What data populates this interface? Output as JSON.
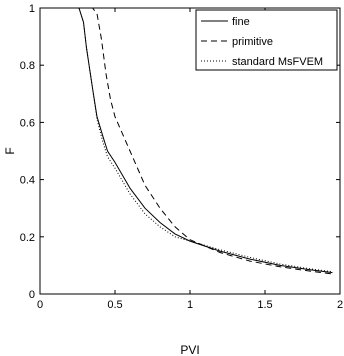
{
  "chart_data": {
    "type": "line",
    "title": "",
    "xlabel": "PVI",
    "ylabel": "F",
    "xlim": [
      0,
      2
    ],
    "ylim": [
      0,
      1
    ],
    "xticks": [
      0,
      0.5,
      1,
      1.5,
      2
    ],
    "xtick_labels": [
      "0",
      "0.5",
      "1",
      "1.5",
      "2"
    ],
    "yticks": [
      0,
      0.2,
      0.4,
      0.6,
      0.8,
      1
    ],
    "ytick_labels": [
      "0",
      "0.2",
      "0.4",
      "0.6",
      "0.8",
      "1"
    ],
    "grid": false,
    "legend_position": "top-right",
    "series": [
      {
        "name": "fine",
        "style": "solid",
        "color": "#000000",
        "x": [
          0.0,
          0.26,
          0.29,
          0.31,
          0.35,
          0.38,
          0.42,
          0.45,
          0.5,
          0.6,
          0.7,
          0.8,
          0.9,
          1.0,
          1.2,
          1.4,
          1.6,
          1.8,
          1.95
        ],
        "y": [
          1.0,
          1.0,
          0.95,
          0.86,
          0.72,
          0.62,
          0.55,
          0.5,
          0.46,
          0.37,
          0.3,
          0.25,
          0.21,
          0.185,
          0.15,
          0.122,
          0.1,
          0.085,
          0.075
        ]
      },
      {
        "name": "primitive",
        "style": "dashed",
        "color": "#000000",
        "x": [
          0.0,
          0.35,
          0.38,
          0.41,
          0.44,
          0.47,
          0.5,
          0.6,
          0.7,
          0.8,
          0.9,
          1.0,
          1.2,
          1.4,
          1.6,
          1.8,
          1.95
        ],
        "y": [
          1.0,
          1.0,
          0.98,
          0.89,
          0.77,
          0.68,
          0.62,
          0.5,
          0.38,
          0.3,
          0.235,
          0.19,
          0.145,
          0.115,
          0.095,
          0.08,
          0.07
        ]
      },
      {
        "name": "standard MsFVEM",
        "style": "dotted",
        "color": "#000000",
        "x": [
          0.0,
          0.26,
          0.29,
          0.31,
          0.35,
          0.38,
          0.42,
          0.45,
          0.5,
          0.6,
          0.7,
          0.8,
          0.9,
          1.0,
          1.2,
          1.4,
          1.6,
          1.8,
          1.95
        ],
        "y": [
          1.0,
          1.0,
          0.95,
          0.86,
          0.72,
          0.61,
          0.53,
          0.48,
          0.44,
          0.35,
          0.28,
          0.235,
          0.2,
          0.185,
          0.155,
          0.128,
          0.105,
          0.088,
          0.078
        ]
      }
    ]
  }
}
